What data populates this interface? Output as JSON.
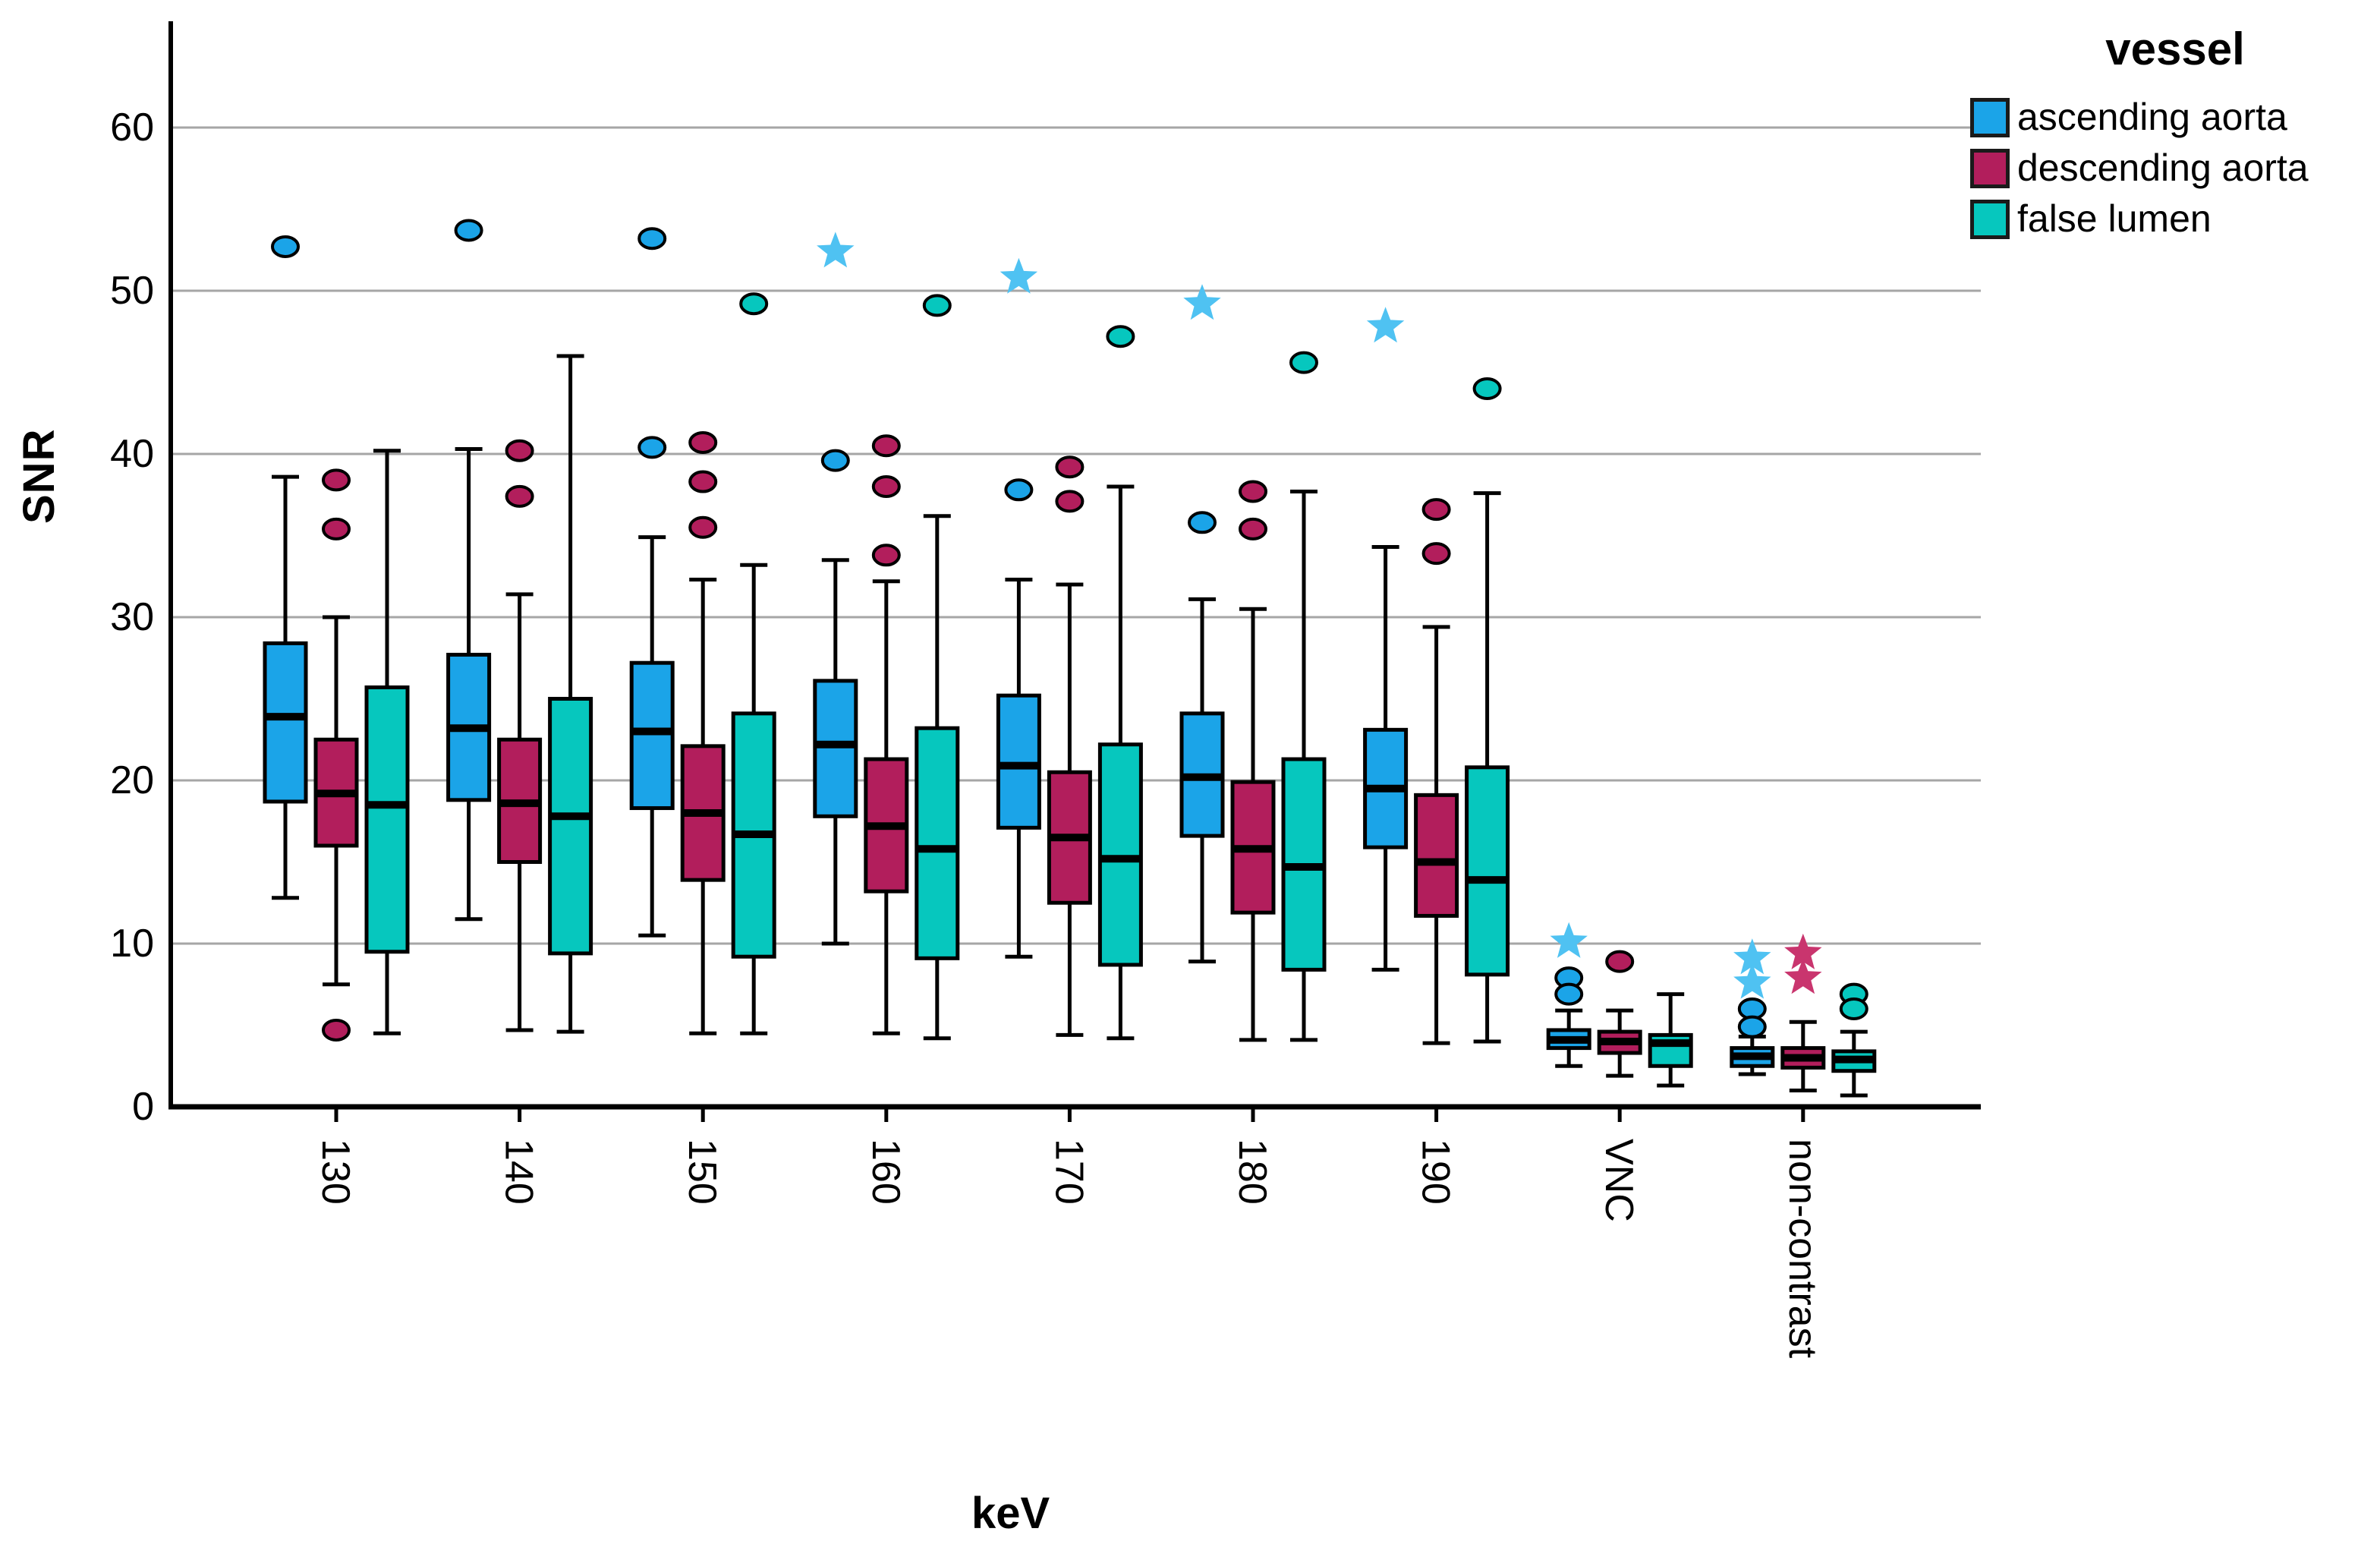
{
  "chart_data": {
    "type": "boxplot",
    "xlabel": "keV",
    "ylabel": "SNR",
    "ylim": [
      0,
      66.5
    ],
    "yticks": [
      0,
      10,
      20,
      30,
      40,
      50,
      60
    ],
    "grid": "horizontal",
    "categories": [
      "130",
      "140",
      "150",
      "160",
      "170",
      "180",
      "190",
      "VNC",
      "non-contrast"
    ],
    "legend": {
      "title": "vessel",
      "position": "top-right",
      "entries": [
        {
          "name": "ascending aorta",
          "color": "#1BA4E8"
        },
        {
          "name": "descending aorta",
          "color": "#B21E5C"
        },
        {
          "name": "false lumen",
          "color": "#06C7BE"
        }
      ]
    },
    "series": [
      {
        "name": "ascending aorta",
        "color": "#1BA4E8",
        "star_color": "#4FC2F2",
        "boxes": [
          {
            "category": "130",
            "low": 12.8,
            "q1": 18.7,
            "median": 23.9,
            "q3": 28.4,
            "high": 38.6,
            "circles": [
              52.7
            ],
            "stars": []
          },
          {
            "category": "140",
            "low": 11.5,
            "q1": 18.8,
            "median": 23.2,
            "q3": 27.7,
            "high": 40.3,
            "circles": [
              53.7
            ],
            "stars": []
          },
          {
            "category": "150",
            "low": 10.5,
            "q1": 18.3,
            "median": 23.0,
            "q3": 27.2,
            "high": 34.9,
            "circles": [
              53.2,
              40.4
            ],
            "stars": []
          },
          {
            "category": "160",
            "low": 10.0,
            "q1": 17.8,
            "median": 22.2,
            "q3": 26.1,
            "high": 33.5,
            "circles": [
              39.6
            ],
            "stars": [
              52.4
            ]
          },
          {
            "category": "170",
            "low": 9.2,
            "q1": 17.1,
            "median": 20.9,
            "q3": 25.2,
            "high": 32.3,
            "circles": [
              37.8
            ],
            "stars": [
              50.8
            ]
          },
          {
            "category": "180",
            "low": 8.9,
            "q1": 16.6,
            "median": 20.2,
            "q3": 24.1,
            "high": 31.1,
            "circles": [
              35.8
            ],
            "stars": [
              49.2
            ]
          },
          {
            "category": "190",
            "low": 8.4,
            "q1": 15.9,
            "median": 19.5,
            "q3": 23.1,
            "high": 34.3,
            "circles": [],
            "stars": [
              47.8
            ]
          },
          {
            "category": "VNC",
            "low": 2.5,
            "q1": 3.6,
            "median": 4.1,
            "q3": 4.7,
            "high": 5.9,
            "circles": [
              7.9,
              6.9
            ],
            "stars": [
              10.1
            ]
          },
          {
            "category": "non-contrast",
            "low": 2.0,
            "q1": 2.5,
            "median": 3.1,
            "q3": 3.6,
            "high": 4.3,
            "circles": [
              6.0,
              4.9
            ],
            "stars": [
              9.1,
              7.6
            ]
          }
        ]
      },
      {
        "name": "descending aorta",
        "color": "#B21E5C",
        "star_color": "#C9356E",
        "boxes": [
          {
            "category": "130",
            "low": 7.5,
            "q1": 16.0,
            "median": 19.2,
            "q3": 22.5,
            "high": 30.0,
            "circles": [
              38.4,
              35.4,
              4.7
            ],
            "stars": []
          },
          {
            "category": "140",
            "low": 4.7,
            "q1": 15.0,
            "median": 18.6,
            "q3": 22.5,
            "high": 31.4,
            "circles": [
              40.2,
              37.4
            ],
            "stars": []
          },
          {
            "category": "150",
            "low": 4.5,
            "q1": 13.9,
            "median": 18.0,
            "q3": 22.1,
            "high": 32.3,
            "circles": [
              40.7,
              38.3,
              35.5
            ],
            "stars": []
          },
          {
            "category": "160",
            "low": 4.5,
            "q1": 13.2,
            "median": 17.2,
            "q3": 21.3,
            "high": 32.2,
            "circles": [
              40.5,
              38.0,
              33.8
            ],
            "stars": []
          },
          {
            "category": "170",
            "low": 4.4,
            "q1": 12.5,
            "median": 16.5,
            "q3": 20.5,
            "high": 32.0,
            "circles": [
              39.2,
              37.1
            ],
            "stars": []
          },
          {
            "category": "180",
            "low": 4.1,
            "q1": 11.9,
            "median": 15.8,
            "q3": 19.9,
            "high": 30.5,
            "circles": [
              37.7,
              35.4
            ],
            "stars": []
          },
          {
            "category": "190",
            "low": 3.9,
            "q1": 11.7,
            "median": 15.0,
            "q3": 19.1,
            "high": 29.4,
            "circles": [
              36.6,
              33.9
            ],
            "stars": []
          },
          {
            "category": "VNC",
            "low": 1.9,
            "q1": 3.3,
            "median": 4.0,
            "q3": 4.6,
            "high": 5.9,
            "circles": [
              8.9
            ],
            "stars": []
          },
          {
            "category": "non-contrast",
            "low": 1.0,
            "q1": 2.4,
            "median": 3.0,
            "q3": 3.6,
            "high": 5.2,
            "circles": [],
            "stars": [
              9.4,
              7.9
            ]
          }
        ]
      },
      {
        "name": "false lumen",
        "color": "#06C7BE",
        "star_color": "#3BD9CF",
        "boxes": [
          {
            "category": "130",
            "low": 4.5,
            "q1": 9.5,
            "median": 18.5,
            "q3": 25.7,
            "high": 40.2,
            "circles": [],
            "stars": []
          },
          {
            "category": "140",
            "low": 4.6,
            "q1": 9.4,
            "median": 17.8,
            "q3": 25.0,
            "high": 46.0,
            "circles": [],
            "stars": []
          },
          {
            "category": "150",
            "low": 4.5,
            "q1": 9.2,
            "median": 16.7,
            "q3": 24.1,
            "high": 33.2,
            "circles": [
              49.2
            ],
            "stars": []
          },
          {
            "category": "160",
            "low": 4.2,
            "q1": 9.1,
            "median": 15.8,
            "q3": 23.2,
            "high": 36.2,
            "circles": [
              49.1
            ],
            "stars": []
          },
          {
            "category": "170",
            "low": 4.2,
            "q1": 8.7,
            "median": 15.2,
            "q3": 22.2,
            "high": 38.0,
            "circles": [
              47.2
            ],
            "stars": []
          },
          {
            "category": "180",
            "low": 4.1,
            "q1": 8.4,
            "median": 14.7,
            "q3": 21.3,
            "high": 37.7,
            "circles": [
              45.6
            ],
            "stars": []
          },
          {
            "category": "190",
            "low": 4.0,
            "q1": 8.1,
            "median": 13.9,
            "q3": 20.8,
            "high": 37.6,
            "circles": [
              44.0
            ],
            "stars": []
          },
          {
            "category": "VNC",
            "low": 1.3,
            "q1": 2.5,
            "median": 3.9,
            "q3": 4.4,
            "high": 6.9,
            "circles": [],
            "stars": []
          },
          {
            "category": "non-contrast",
            "low": 0.7,
            "q1": 2.2,
            "median": 2.9,
            "q3": 3.4,
            "high": 4.6,
            "circles": [
              6.9,
              6.0
            ],
            "stars": []
          }
        ]
      }
    ],
    "style_colors": {
      "gridline": "#A6A6A6",
      "axis": "#000000",
      "outlier_outline": "#000000"
    }
  }
}
